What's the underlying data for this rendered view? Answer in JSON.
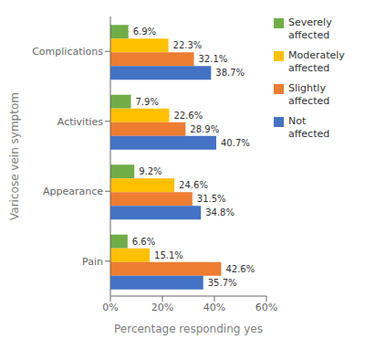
{
  "chart_data": {
    "type": "bar",
    "orientation": "horizontal",
    "categories": [
      "Complications",
      "Activities",
      "Appearance",
      "Pain"
    ],
    "series": [
      {
        "name": "Severely\naffected",
        "color": "#70AD47",
        "values": [
          6.9,
          7.9,
          9.2,
          6.6
        ],
        "value_labels": [
          "6.9%",
          "7.9%",
          "9.2%",
          "6.6%"
        ]
      },
      {
        "name": "Moderately\naffected",
        "color": "#FFC000",
        "values": [
          22.3,
          22.6,
          24.6,
          15.1
        ],
        "value_labels": [
          "22.3%",
          "22.6%",
          "24.6%",
          "15.1%"
        ]
      },
      {
        "name": "Slightly\naffected",
        "color": "#ED7D31",
        "values": [
          32.1,
          28.9,
          31.5,
          42.6
        ],
        "value_labels": [
          "32.1%",
          "28.9%",
          "31.5%",
          "42.6%"
        ]
      },
      {
        "name": "Not\naffected",
        "color": "#4472C4",
        "values": [
          38.7,
          40.7,
          34.8,
          35.7
        ],
        "value_labels": [
          "38.7%",
          "40.7%",
          "34.8%",
          "35.7%"
        ]
      }
    ],
    "xlim": [
      0,
      60
    ],
    "xticks": [
      {
        "value": 0,
        "label": "0%"
      },
      {
        "value": 20,
        "label": "20%"
      },
      {
        "value": 40,
        "label": "40%"
      },
      {
        "value": 60,
        "label": "60%"
      }
    ],
    "xlabel": "Percentage responding yes",
    "ylabel": "Varicose vein symptom",
    "data_labels": true,
    "legend": "upper right",
    "grid": false
  }
}
